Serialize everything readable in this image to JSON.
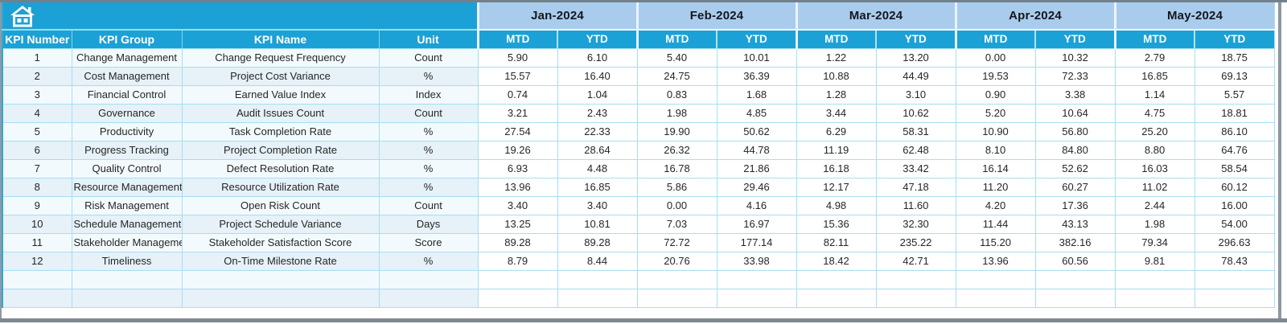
{
  "app": {
    "description_note": "Project KPI spreadsheet dashboard",
    "colors": {
      "accent_teal": "#1BA1D6",
      "month_header_bg": "#A9CCEC",
      "month_header_text": "#15161f",
      "grid_border": "#A5DFF1",
      "left_cell_bg": "#E9F4FA",
      "frame_border": "#7f8992"
    },
    "icons": {
      "home": "home-icon"
    }
  },
  "table": {
    "left_headers": [
      "KPI Number",
      "KPI Group",
      "KPI Name",
      "Unit"
    ],
    "months": [
      "Jan-2024",
      "Feb-2024",
      "Mar-2024",
      "Apr-2024",
      "May-2024"
    ],
    "sub_headers": [
      "MTD",
      "YTD"
    ],
    "rows": [
      {
        "number": "1",
        "group": "Change Management",
        "name": "Change Request Frequency",
        "unit": "Count",
        "values": [
          "5.90",
          "6.10",
          "5.40",
          "10.01",
          "1.22",
          "13.20",
          "0.00",
          "10.32",
          "2.79",
          "18.75"
        ]
      },
      {
        "number": "2",
        "group": "Cost Management",
        "name": "Project Cost Variance",
        "unit": "%",
        "values": [
          "15.57",
          "16.40",
          "24.75",
          "36.39",
          "10.88",
          "44.49",
          "19.53",
          "72.33",
          "16.85",
          "69.13"
        ]
      },
      {
        "number": "3",
        "group": "Financial Control",
        "name": "Earned Value Index",
        "unit": "Index",
        "values": [
          "0.74",
          "1.04",
          "0.83",
          "1.68",
          "1.28",
          "3.10",
          "0.90",
          "3.38",
          "1.14",
          "5.57"
        ]
      },
      {
        "number": "4",
        "group": "Governance",
        "name": "Audit Issues Count",
        "unit": "Count",
        "values": [
          "3.21",
          "2.43",
          "1.98",
          "4.85",
          "3.44",
          "10.62",
          "5.20",
          "10.64",
          "4.75",
          "18.81"
        ]
      },
      {
        "number": "5",
        "group": "Productivity",
        "name": "Task Completion Rate",
        "unit": "%",
        "values": [
          "27.54",
          "22.33",
          "19.90",
          "50.62",
          "6.29",
          "58.31",
          "10.90",
          "56.80",
          "25.20",
          "86.10"
        ]
      },
      {
        "number": "6",
        "group": "Progress Tracking",
        "name": "Project Completion Rate",
        "unit": "%",
        "values": [
          "19.26",
          "28.64",
          "26.32",
          "44.78",
          "11.19",
          "62.48",
          "8.10",
          "84.80",
          "8.80",
          "64.76"
        ]
      },
      {
        "number": "7",
        "group": "Quality Control",
        "name": "Defect Resolution Rate",
        "unit": "%",
        "values": [
          "6.93",
          "4.48",
          "16.78",
          "21.86",
          "16.18",
          "33.42",
          "16.14",
          "52.62",
          "16.03",
          "58.54"
        ]
      },
      {
        "number": "8",
        "group": "Resource Management",
        "name": "Resource Utilization Rate",
        "unit": "%",
        "values": [
          "13.96",
          "16.85",
          "5.86",
          "29.46",
          "12.17",
          "47.18",
          "11.20",
          "60.27",
          "11.02",
          "60.12"
        ]
      },
      {
        "number": "9",
        "group": "Risk Management",
        "name": "Open Risk Count",
        "unit": "Count",
        "values": [
          "3.40",
          "3.40",
          "0.00",
          "4.16",
          "4.98",
          "11.60",
          "4.20",
          "17.36",
          "2.44",
          "16.00"
        ]
      },
      {
        "number": "10",
        "group": "Schedule Management",
        "name": "Project Schedule Variance",
        "unit": "Days",
        "values": [
          "13.25",
          "10.81",
          "7.03",
          "16.97",
          "15.36",
          "32.30",
          "11.44",
          "43.13",
          "1.98",
          "54.00"
        ]
      },
      {
        "number": "11",
        "group": "Stakeholder Management",
        "name": "Stakeholder Satisfaction Score",
        "unit": "Score",
        "values": [
          "89.28",
          "89.28",
          "72.72",
          "177.14",
          "82.11",
          "235.22",
          "115.20",
          "382.16",
          "79.34",
          "296.63"
        ]
      },
      {
        "number": "12",
        "group": "Timeliness",
        "name": "On-Time Milestone Rate",
        "unit": "%",
        "values": [
          "8.79",
          "8.44",
          "20.76",
          "33.98",
          "18.42",
          "42.71",
          "13.96",
          "60.56",
          "9.81",
          "78.43"
        ]
      }
    ],
    "empty_rows": 2
  }
}
